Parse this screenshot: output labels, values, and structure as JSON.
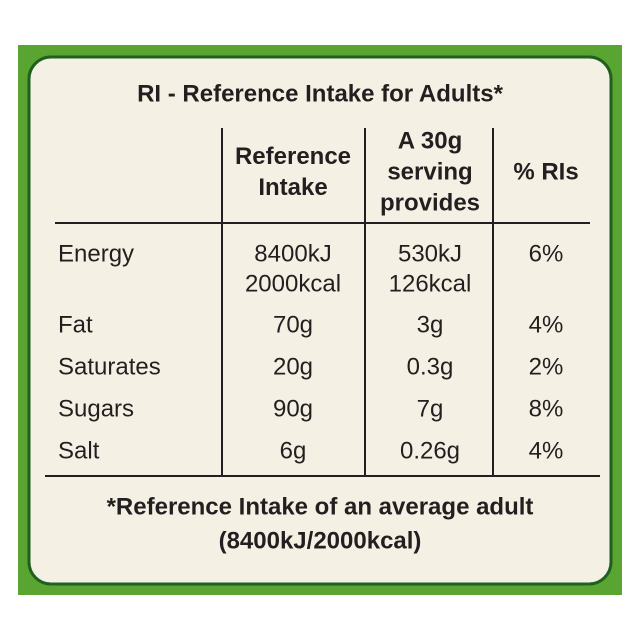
{
  "table": {
    "title": "RI - Reference Intake for Adults*",
    "headers": [
      [],
      [
        "Reference",
        "Intake"
      ],
      [
        "A 30g",
        "serving",
        "provides"
      ],
      [
        "% RIs"
      ]
    ],
    "rows": [
      [
        [
          "Energy"
        ],
        [
          "8400kJ",
          "2000kcal"
        ],
        [
          "530kJ",
          "126kcal"
        ],
        [
          "6%"
        ]
      ],
      [
        [
          "Fat"
        ],
        [
          "70g"
        ],
        [
          "3g"
        ],
        [
          "4%"
        ]
      ],
      [
        [
          "Saturates"
        ],
        [
          "20g"
        ],
        [
          "0.3g"
        ],
        [
          "2%"
        ]
      ],
      [
        [
          "Sugars"
        ],
        [
          "90g"
        ],
        [
          "7g"
        ],
        [
          "8%"
        ]
      ],
      [
        [
          "Salt"
        ],
        [
          "6g"
        ],
        [
          "0.26g"
        ],
        [
          "4%"
        ]
      ]
    ],
    "footnote": [
      "*Reference Intake of an average adult",
      "(8400kJ/2000kcal)"
    ]
  }
}
